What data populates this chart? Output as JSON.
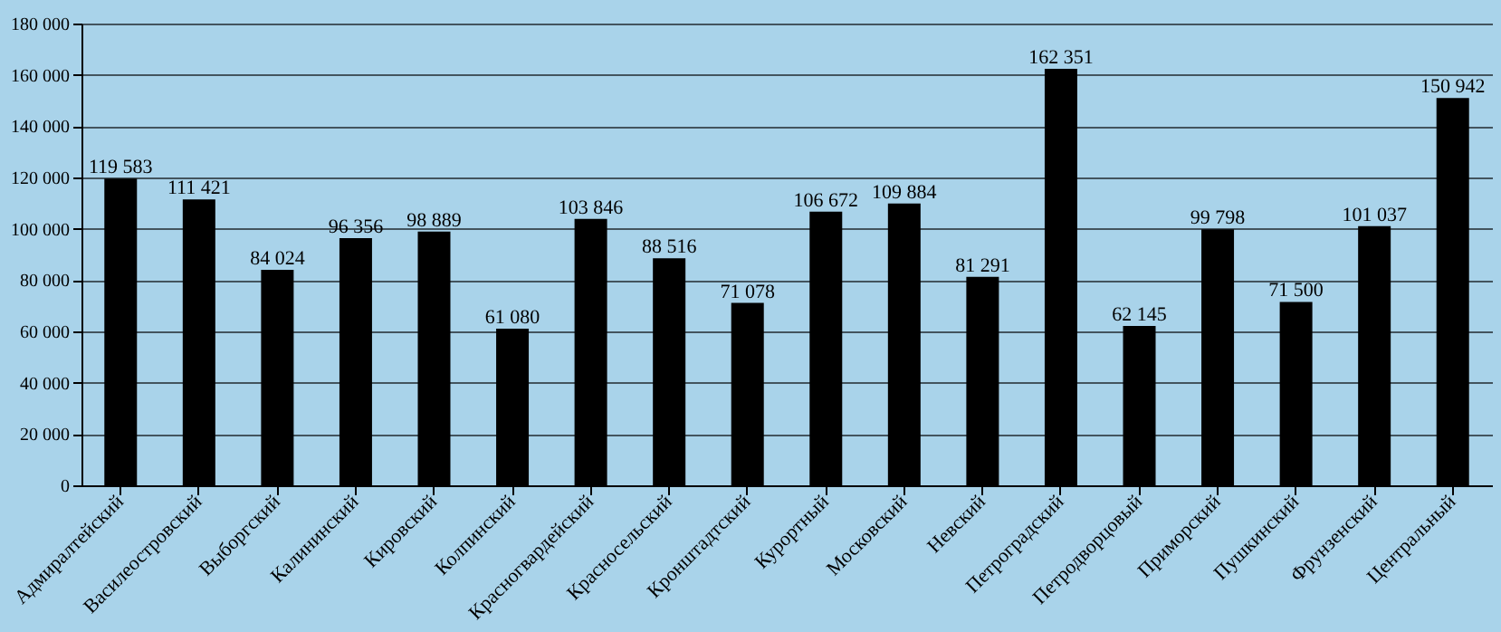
{
  "chart_data": {
    "type": "bar",
    "categories": [
      "Адмиралтейский",
      "Василеостровский",
      "Выборгский",
      "Калининский",
      "Кировский",
      "Колпинский",
      "Красногвардейский",
      "Красносельский",
      "Кронштадтский",
      "Курортный",
      "Московский",
      "Невский",
      "Петроградский",
      "Петродворцовый",
      "Приморский",
      "Пушкинский",
      "Фрунзенский",
      "Центральный"
    ],
    "values": [
      119583,
      111421,
      84024,
      96356,
      98889,
      61080,
      103846,
      88516,
      71078,
      106672,
      109884,
      81291,
      162351,
      62145,
      99798,
      71500,
      101037,
      150942
    ],
    "value_labels": [
      "119 583",
      "111 421",
      "84 024",
      "96 356",
      "98 889",
      "61 080",
      "103 846",
      "88 516",
      "71 078",
      "106 672",
      "109 884",
      "81 291",
      "162 351",
      "62 145",
      "99 798",
      "71 500",
      "101 037",
      "150 942"
    ],
    "color": "#000000",
    "ylim": [
      0,
      180000
    ],
    "yticks": [
      {
        "value": 0,
        "label": "0"
      },
      {
        "value": 20000,
        "label": "20 000"
      },
      {
        "value": 40000,
        "label": "40 000"
      },
      {
        "value": 60000,
        "label": "60 000"
      },
      {
        "value": 80000,
        "label": "80 000"
      },
      {
        "value": 100000,
        "label": "100 000"
      },
      {
        "value": 120000,
        "label": "120 000"
      },
      {
        "value": 140000,
        "label": "140 000"
      },
      {
        "value": 160000,
        "label": "160 000"
      },
      {
        "value": 180000,
        "label": "180 000"
      }
    ],
    "grid": "y"
  }
}
